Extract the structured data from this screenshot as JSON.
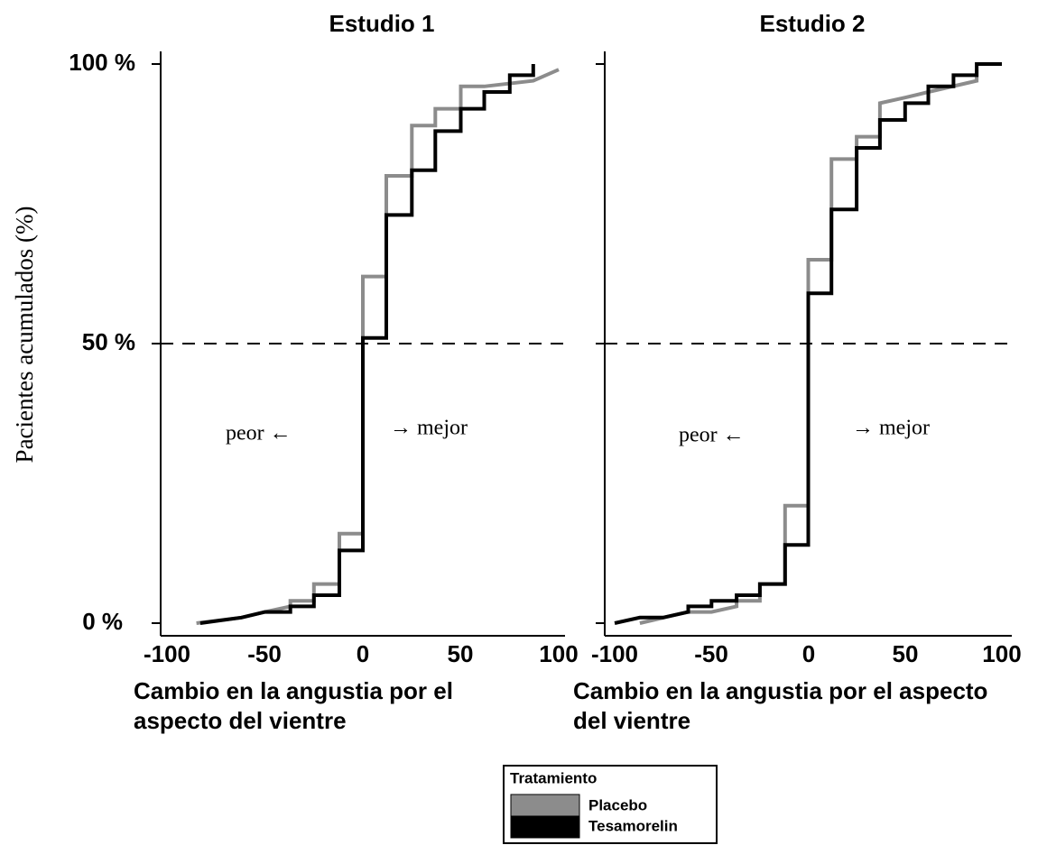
{
  "chart_data": {
    "type": "line",
    "ylabel": "Pacientes acumulados (%)",
    "yticks": [
      {
        "value": 0,
        "label": "0 %"
      },
      {
        "value": 50,
        "label": "50 %"
      },
      {
        "value": 100,
        "label": "100 %"
      }
    ],
    "ylim": [
      0,
      100
    ],
    "reference_line": {
      "y": 50,
      "style": "dashed"
    },
    "legend": {
      "title": "Tratamiento",
      "placement": "bottom-center",
      "entries": [
        {
          "name": "Placebo",
          "color": "#8c8c8c"
        },
        {
          "name": "Tesamorelin",
          "color": "#000000"
        }
      ]
    },
    "panels": [
      {
        "title": "Estudio 1",
        "xlabel_lines": [
          "Cambio en la angustia por el",
          "aspecto del vientre"
        ],
        "xlim": [
          -100,
          100
        ],
        "xticks": [
          -100,
          -50,
          0,
          50,
          100
        ],
        "annotations": [
          {
            "text": "peor ←",
            "x": -43,
            "y": 34
          },
          {
            "text": "→ mejor",
            "x": 14,
            "y": 35
          }
        ],
        "series": [
          {
            "name": "Tesamorelin",
            "points": [
              [
                -83,
                0
              ],
              [
                -62,
                1
              ],
              [
                -50,
                2
              ],
              [
                -37,
                2
              ],
              [
                -37,
                3
              ],
              [
                -25,
                3
              ],
              [
                -25,
                5
              ],
              [
                -12,
                5
              ],
              [
                -12,
                13
              ],
              [
                0,
                13
              ],
              [
                0,
                51
              ],
              [
                12,
                51
              ],
              [
                12,
                73
              ],
              [
                25,
                73
              ],
              [
                25,
                81
              ],
              [
                37,
                81
              ],
              [
                37,
                88
              ],
              [
                50,
                88
              ],
              [
                50,
                92
              ],
              [
                62,
                92
              ],
              [
                62,
                95
              ],
              [
                75,
                95
              ],
              [
                75,
                98
              ],
              [
                87,
                98
              ],
              [
                87,
                100
              ]
            ]
          },
          {
            "name": "Placebo",
            "points": [
              [
                -85,
                0
              ],
              [
                -62,
                1
              ],
              [
                -50,
                2
              ],
              [
                -37,
                3
              ],
              [
                -37,
                4
              ],
              [
                -25,
                4
              ],
              [
                -25,
                7
              ],
              [
                -12,
                7
              ],
              [
                -12,
                16
              ],
              [
                0,
                16
              ],
              [
                0,
                62
              ],
              [
                12,
                62
              ],
              [
                12,
                80
              ],
              [
                25,
                80
              ],
              [
                25,
                89
              ],
              [
                37,
                89
              ],
              [
                37,
                92
              ],
              [
                50,
                92
              ],
              [
                50,
                96
              ],
              [
                62,
                96
              ],
              [
                87,
                97
              ],
              [
                100,
                99
              ]
            ]
          }
        ]
      },
      {
        "title": "Estudio 2",
        "xlabel_lines": [
          "Cambio en la angustia por el aspecto",
          "del vientre"
        ],
        "xlim": [
          -100,
          100
        ],
        "xticks": [
          -100,
          -50,
          0,
          50,
          100
        ],
        "annotations": [
          {
            "text": "peor ←",
            "x": -54,
            "y": 34
          },
          {
            "text": "→ mejor",
            "x": 23,
            "y": 35
          }
        ],
        "series": [
          {
            "name": "Tesamorelin",
            "points": [
              [
                -100,
                0
              ],
              [
                -87,
                1
              ],
              [
                -75,
                1
              ],
              [
                -62,
                2
              ],
              [
                -62,
                3
              ],
              [
                -50,
                3
              ],
              [
                -50,
                4
              ],
              [
                -37,
                4
              ],
              [
                -37,
                5
              ],
              [
                -25,
                5
              ],
              [
                -25,
                7
              ],
              [
                -12,
                7
              ],
              [
                -12,
                14
              ],
              [
                0,
                14
              ],
              [
                0,
                59
              ],
              [
                12,
                59
              ],
              [
                12,
                74
              ],
              [
                25,
                74
              ],
              [
                25,
                85
              ],
              [
                37,
                85
              ],
              [
                37,
                90
              ],
              [
                50,
                90
              ],
              [
                50,
                93
              ],
              [
                62,
                93
              ],
              [
                62,
                96
              ],
              [
                75,
                96
              ],
              [
                75,
                98
              ],
              [
                87,
                98
              ],
              [
                87,
                100
              ],
              [
                100,
                100
              ]
            ]
          },
          {
            "name": "Placebo",
            "points": [
              [
                -87,
                0
              ],
              [
                -62,
                2
              ],
              [
                -50,
                2
              ],
              [
                -37,
                3
              ],
              [
                -37,
                4
              ],
              [
                -25,
                4
              ],
              [
                -25,
                7
              ],
              [
                -12,
                7
              ],
              [
                -12,
                21
              ],
              [
                0,
                21
              ],
              [
                0,
                65
              ],
              [
                12,
                65
              ],
              [
                12,
                83
              ],
              [
                25,
                83
              ],
              [
                25,
                87
              ],
              [
                37,
                87
              ],
              [
                37,
                93
              ],
              [
                50,
                94
              ],
              [
                62,
                95
              ],
              [
                87,
                97
              ],
              [
                87,
                99
              ]
            ]
          }
        ]
      }
    ]
  }
}
